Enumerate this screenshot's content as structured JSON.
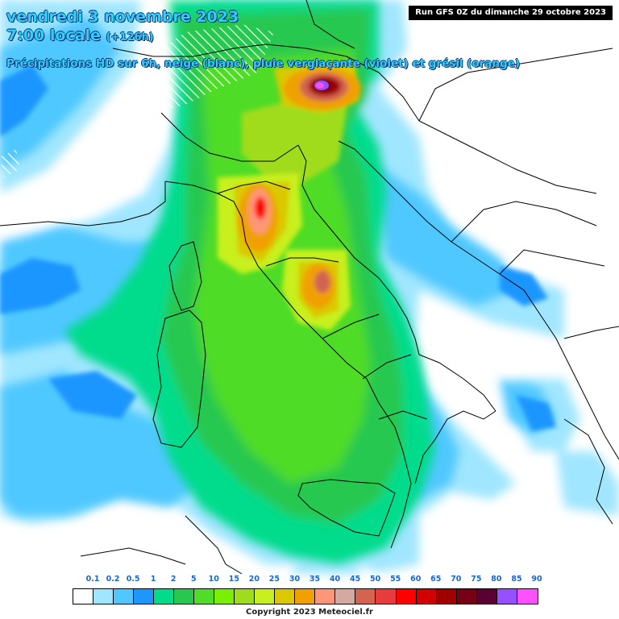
{
  "header": {
    "date_line": "vendredi 3 novembre 2023",
    "time_line": "7:00 locale",
    "lead_time": "(+126h)",
    "subtitle": "Précipitations HD sur 6h, neige (blanc), pluie verglaçante (violet) et grésil (orange)",
    "run_info": "Run GFS 0Z du dimanche 29 octobre 2023"
  },
  "legend": {
    "labels": [
      "0.1",
      "0.2",
      "0.5",
      "1",
      "2",
      "5",
      "10",
      "15",
      "20",
      "25",
      "30",
      "35",
      "40",
      "45",
      "50",
      "55",
      "60",
      "65",
      "70",
      "75",
      "80",
      "85",
      "90"
    ],
    "colors": [
      "#ffffff",
      "#a0e6ff",
      "#50c8ff",
      "#1e96ff",
      "#00dc8c",
      "#28c850",
      "#50dc28",
      "#78f000",
      "#a0dc1e",
      "#c8f01e",
      "#dcc800",
      "#f0a000",
      "#ff9678",
      "#d2aaa0",
      "#d26450",
      "#e63c3c",
      "#ff0000",
      "#d20000",
      "#a00000",
      "#780014",
      "#5a0032",
      "#9650ff",
      "#ff50ff"
    ]
  },
  "footer": {
    "copyright": "Copyright 2023 Meteociel.fr"
  },
  "map": {
    "region": "Italy / Tyrrhenian Sea",
    "precip_max_band": "90"
  }
}
